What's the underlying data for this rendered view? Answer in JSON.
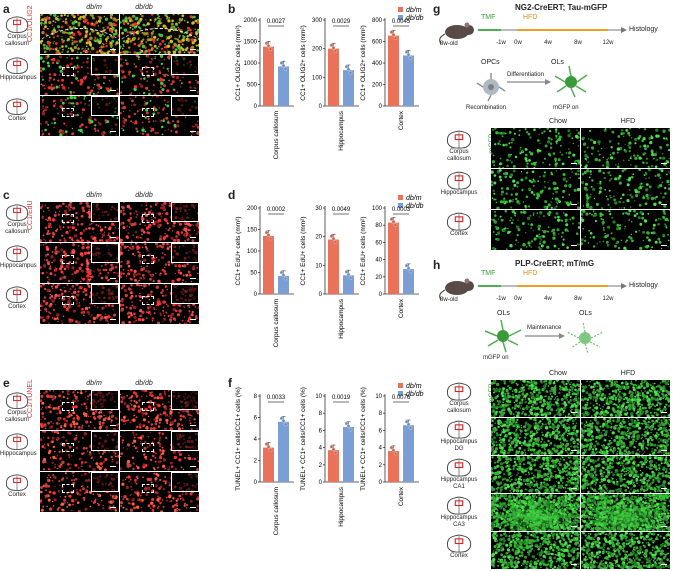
{
  "panels": {
    "a": {
      "label": "a",
      "stain": "CC1/OLIG2",
      "col1": "db/m",
      "col2": "db/db",
      "rows": [
        "Corpus callosum",
        "Hippocampus",
        "Cortex"
      ]
    },
    "c": {
      "label": "c",
      "stain": "CC1/EdU",
      "col1": "db/m",
      "col2": "db/db",
      "rows": [
        "Corpus callosum",
        "Hippocampus",
        "Cortex"
      ]
    },
    "e": {
      "label": "e",
      "stain": "CC1/TUNEL",
      "col1": "db/m",
      "col2": "db/db",
      "rows": [
        "Corpus callosum",
        "Hippocampus",
        "Cortex"
      ]
    },
    "g": {
      "label": "g",
      "title": "NG2-CreERT; Tau-mGFP",
      "age": "8w-old",
      "timeline": [
        "-1w",
        "0w",
        "4w",
        "8w",
        "12w"
      ],
      "tmf": "TMF",
      "hfd": "HFD",
      "end": "Histology",
      "cell1": "OPCs",
      "cell2": "OLs",
      "arrow": "Differentiation",
      "sub1": "Recombination",
      "sub2": "mGFP on",
      "col1": "Chow",
      "col2": "HFD",
      "stain": "mGFP",
      "rows": [
        "Corpus callosum",
        "Hippocampus",
        "Cortex"
      ]
    },
    "h": {
      "label": "h",
      "title": "PLP-CreERT; mT/mG",
      "age": "8w-old",
      "timeline": [
        "-1w",
        "0w",
        "4w",
        "8w",
        "12w"
      ],
      "tmf": "TMF",
      "hfd": "HFD",
      "end": "Histology",
      "cell1": "OLs",
      "cell2": "OLs",
      "arrow": "Maintenance",
      "sub1": "mGFP on",
      "col1": "Chow",
      "col2": "HFD",
      "stain": "mGFP",
      "rows": [
        "Corpus callosum",
        "Hippocampus DG",
        "Hippocampus CA1",
        "Hippocampus CA3",
        "Cortex"
      ]
    }
  },
  "legend": {
    "a": "db/m",
    "b": "db/db"
  },
  "colors": {
    "dbm": "#e8735a",
    "dbdb": "#7b9fd4"
  },
  "chart_data": [
    {
      "panel": "b",
      "type": "bar",
      "ylabel": "CC1+ OLIG2+ cells (mm²)",
      "charts": [
        {
          "category": "Corpus callosum",
          "values": [
            1380,
            920
          ],
          "ylim": [
            0,
            2000
          ],
          "ticks": [
            0,
            500,
            1000,
            1500,
            2000
          ],
          "p": "0.0027"
        },
        {
          "category": "Hippocampus",
          "values": [
            200,
            125
          ],
          "ylim": [
            0,
            300
          ],
          "ticks": [
            0,
            100,
            200,
            300
          ],
          "p": "0.0029"
        },
        {
          "category": "Cortex",
          "values": [
            655,
            470
          ],
          "ylim": [
            0,
            800
          ],
          "ticks": [
            0,
            200,
            400,
            600,
            800
          ],
          "p": "0.0045"
        }
      ]
    },
    {
      "panel": "d",
      "type": "bar",
      "ylabel": "CC1+ EdU+ cells (mm²)",
      "charts": [
        {
          "category": "Corpus callosum",
          "values": [
            135,
            42
          ],
          "ylim": [
            0,
            200
          ],
          "ticks": [
            0,
            50,
            100,
            150,
            200
          ],
          "p": "0.0002"
        },
        {
          "category": "Hippocampus",
          "values": [
            19,
            6.5
          ],
          "ylim": [
            0,
            30
          ],
          "ticks": [
            0,
            10,
            20,
            30
          ],
          "p": "0.0049"
        },
        {
          "category": "Cortex",
          "values": [
            83,
            29
          ],
          "ylim": [
            0,
            100
          ],
          "ticks": [
            0,
            20,
            40,
            60,
            80,
            100
          ],
          "p": "0.0003"
        }
      ]
    },
    {
      "panel": "f",
      "type": "bar",
      "ylabel": "TUNEL+ CC1+ cells/CC1+ cells (%)",
      "charts": [
        {
          "category": "Corpus callosum",
          "values": [
            3.2,
            5.6
          ],
          "ylim": [
            0,
            8
          ],
          "ticks": [
            0,
            2,
            4,
            6,
            8
          ],
          "p": "0.0033"
        },
        {
          "category": "Hippocampus",
          "values": [
            3.7,
            6.4
          ],
          "ylim": [
            0,
            10
          ],
          "ticks": [
            0,
            2,
            4,
            6,
            8,
            10
          ],
          "p": "0.0019"
        },
        {
          "category": "Cortex",
          "values": [
            3.6,
            6.6
          ],
          "ylim": [
            0,
            10
          ],
          "ticks": [
            0,
            2,
            4,
            6,
            8,
            10
          ],
          "p": "0.0076"
        }
      ]
    }
  ]
}
